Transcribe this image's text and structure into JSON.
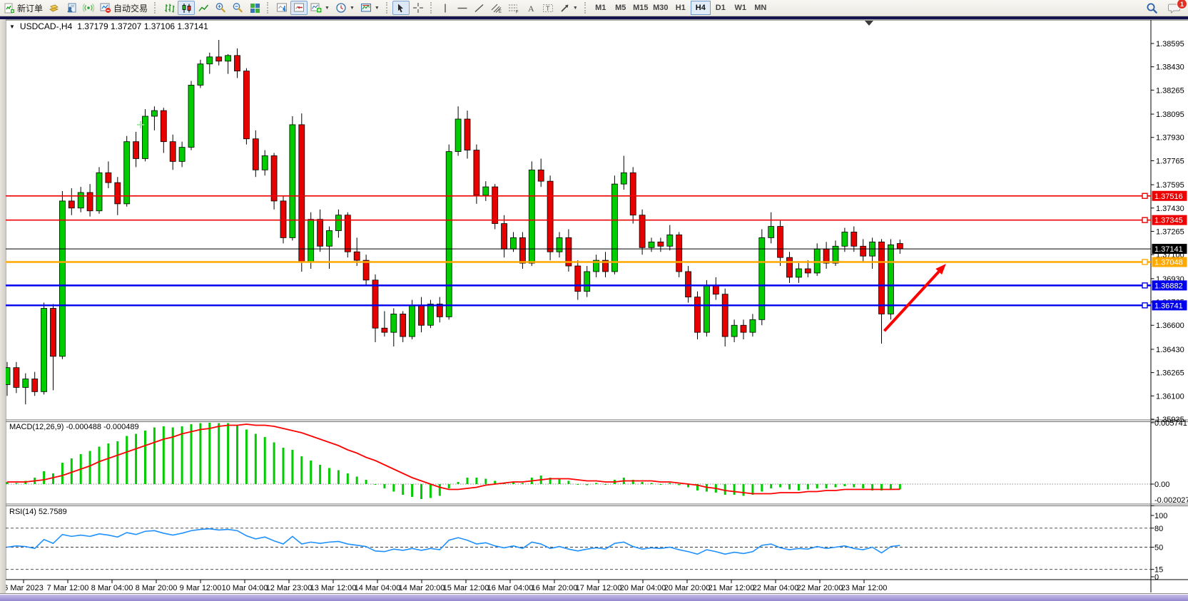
{
  "app": {
    "badge_count": "1"
  },
  "toolbar": {
    "new_order_label": "新订单",
    "autotrading_label": "自动交易",
    "timeframes": [
      {
        "label": "M1",
        "active": false
      },
      {
        "label": "M5",
        "active": false
      },
      {
        "label": "M15",
        "active": false
      },
      {
        "label": "M30",
        "active": false
      },
      {
        "label": "H1",
        "active": false
      },
      {
        "label": "H4",
        "active": true
      },
      {
        "label": "D1",
        "active": false
      },
      {
        "label": "W1",
        "active": false
      },
      {
        "label": "MN",
        "active": false
      }
    ]
  },
  "chart_window": {
    "symbol_period": "USDCAD-,H4",
    "ohlc_text": "1.37179 1.37207 1.37106 1.37141"
  },
  "chart_data": [
    {
      "type": "candlestick",
      "symbol": "USDCAD",
      "timeframe": "H4",
      "title": "USDCAD-,H4",
      "current_bar": {
        "open": 1.37179,
        "high": 1.37207,
        "low": 1.37106,
        "close": 1.37141
      },
      "bull_color": "#00CC00",
      "bear_color": "#E60000",
      "wick_color": "#000000",
      "price_ticks": [
        "1.38595",
        "1.38430",
        "1.38265",
        "1.38095",
        "1.37930",
        "1.37765",
        "1.37595",
        "1.37430",
        "1.37265",
        "1.37100",
        "1.36930",
        "1.36765",
        "1.36600",
        "1.36430",
        "1.36265",
        "1.36100",
        "1.35935"
      ],
      "ylim": [
        1.35935,
        1.38595
      ],
      "grid": false,
      "time_labels": [
        "6 Mar 2023",
        "7 Mar 12:00",
        "8 Mar 04:00",
        "8 Mar 20:00",
        "9 Mar 12:00",
        "10 Mar 04:00",
        "12 Mar 23:00",
        "13 Mar 12:00",
        "14 Mar 04:00",
        "14 Mar 20:00",
        "15 Mar 12:00",
        "16 Mar 04:00",
        "16 Mar 20:00",
        "17 Mar 12:00",
        "20 Mar 04:00",
        "20 Mar 20:00",
        "21 Mar 12:00",
        "22 Mar 04:00",
        "22 Mar 20:00",
        "23 Mar 12:00"
      ],
      "candles": [
        [
          1.3618,
          1.3634,
          1.361,
          1.363
        ],
        [
          1.363,
          1.3634,
          1.3612,
          1.3616
        ],
        [
          1.3616,
          1.3626,
          1.3604,
          1.3622
        ],
        [
          1.3622,
          1.3627,
          1.361,
          1.3613
        ],
        [
          1.3613,
          1.3676,
          1.3611,
          1.3672
        ],
        [
          1.3672,
          1.3675,
          1.3614,
          1.3638
        ],
        [
          1.3638,
          1.3755,
          1.3636,
          1.3748
        ],
        [
          1.3748,
          1.3757,
          1.3738,
          1.3743
        ],
        [
          1.3743,
          1.3758,
          1.374,
          1.3754
        ],
        [
          1.3754,
          1.376,
          1.3737,
          1.3741
        ],
        [
          1.3741,
          1.3772,
          1.3739,
          1.3768
        ],
        [
          1.3768,
          1.3776,
          1.3757,
          1.3761
        ],
        [
          1.3761,
          1.3765,
          1.3738,
          1.3746
        ],
        [
          1.3746,
          1.3794,
          1.3744,
          1.379
        ],
        [
          1.379,
          1.3797,
          1.3772,
          1.3778
        ],
        [
          1.3778,
          1.3813,
          1.3776,
          1.3808
        ],
        [
          1.3808,
          1.3815,
          1.3798,
          1.3812
        ],
        [
          1.3812,
          1.3814,
          1.3782,
          1.379
        ],
        [
          1.379,
          1.3795,
          1.377,
          1.3776
        ],
        [
          1.3776,
          1.379,
          1.3772,
          1.3786
        ],
        [
          1.3786,
          1.3833,
          1.3784,
          1.383
        ],
        [
          1.383,
          1.3848,
          1.3828,
          1.3845
        ],
        [
          1.3845,
          1.3853,
          1.3838,
          1.385
        ],
        [
          1.385,
          1.3862,
          1.3844,
          1.3847
        ],
        [
          1.3847,
          1.3852,
          1.3838,
          1.3851
        ],
        [
          1.3851,
          1.3856,
          1.3835,
          1.384
        ],
        [
          1.384,
          1.3842,
          1.3788,
          1.3792
        ],
        [
          1.3792,
          1.3798,
          1.3765,
          1.377
        ],
        [
          1.377,
          1.3784,
          1.3766,
          1.378
        ],
        [
          1.378,
          1.3782,
          1.3742,
          1.3748
        ],
        [
          1.3748,
          1.3752,
          1.3718,
          1.3722
        ],
        [
          1.3722,
          1.3808,
          1.372,
          1.3802
        ],
        [
          1.3802,
          1.381,
          1.3698,
          1.3705
        ],
        [
          1.3705,
          1.374,
          1.37,
          1.3735
        ],
        [
          1.3735,
          1.3742,
          1.3712,
          1.3716
        ],
        [
          1.3716,
          1.373,
          1.37,
          1.3727
        ],
        [
          1.3727,
          1.3742,
          1.3722,
          1.3738
        ],
        [
          1.3738,
          1.374,
          1.3708,
          1.3712
        ],
        [
          1.3712,
          1.3722,
          1.3702,
          1.3706
        ],
        [
          1.3706,
          1.371,
          1.3688,
          1.3692
        ],
        [
          1.3692,
          1.3696,
          1.3648,
          1.3658
        ],
        [
          1.3658,
          1.367,
          1.3652,
          1.3655
        ],
        [
          1.3655,
          1.3672,
          1.3645,
          1.3668
        ],
        [
          1.3668,
          1.367,
          1.3648,
          1.3652
        ],
        [
          1.3652,
          1.3678,
          1.365,
          1.3674
        ],
        [
          1.3674,
          1.368,
          1.3655,
          1.366
        ],
        [
          1.366,
          1.3678,
          1.3658,
          1.3675
        ],
        [
          1.3675,
          1.368,
          1.3662,
          1.3666
        ],
        [
          1.3666,
          1.3788,
          1.3664,
          1.3783
        ],
        [
          1.3783,
          1.3815,
          1.378,
          1.3806
        ],
        [
          1.3806,
          1.3812,
          1.3778,
          1.3784
        ],
        [
          1.3784,
          1.3788,
          1.3746,
          1.3752
        ],
        [
          1.3752,
          1.3762,
          1.3748,
          1.3758
        ],
        [
          1.3758,
          1.376,
          1.3728,
          1.3732
        ],
        [
          1.3732,
          1.3738,
          1.3708,
          1.3714
        ],
        [
          1.3714,
          1.3726,
          1.3712,
          1.3722
        ],
        [
          1.3722,
          1.3726,
          1.37,
          1.3704
        ],
        [
          1.3704,
          1.3776,
          1.3702,
          1.377
        ],
        [
          1.377,
          1.3778,
          1.3758,
          1.3762
        ],
        [
          1.3762,
          1.3766,
          1.3706,
          1.3712
        ],
        [
          1.3712,
          1.3726,
          1.3708,
          1.3722
        ],
        [
          1.3722,
          1.3728,
          1.3698,
          1.3702
        ],
        [
          1.3702,
          1.3706,
          1.3678,
          1.3684
        ],
        [
          1.3684,
          1.3702,
          1.368,
          1.3698
        ],
        [
          1.3698,
          1.371,
          1.3694,
          1.3706
        ],
        [
          1.3706,
          1.3712,
          1.3694,
          1.3698
        ],
        [
          1.3698,
          1.3766,
          1.3696,
          1.376
        ],
        [
          1.376,
          1.378,
          1.3756,
          1.3768
        ],
        [
          1.3768,
          1.3772,
          1.3732,
          1.3738
        ],
        [
          1.3738,
          1.3742,
          1.371,
          1.3715
        ],
        [
          1.3715,
          1.3722,
          1.3712,
          1.3719
        ],
        [
          1.3719,
          1.3722,
          1.3712,
          1.3716
        ],
        [
          1.3716,
          1.3731,
          1.3713,
          1.3724
        ],
        [
          1.3724,
          1.3726,
          1.3694,
          1.3698
        ],
        [
          1.3698,
          1.3702,
          1.3676,
          1.368
        ],
        [
          1.368,
          1.3684,
          1.365,
          1.3655
        ],
        [
          1.3655,
          1.3692,
          1.3652,
          1.3688
        ],
        [
          1.3688,
          1.3694,
          1.3678,
          1.3682
        ],
        [
          1.3682,
          1.3686,
          1.3645,
          1.3652
        ],
        [
          1.3652,
          1.3664,
          1.3648,
          1.366
        ],
        [
          1.366,
          1.3664,
          1.365,
          1.3655
        ],
        [
          1.3655,
          1.3668,
          1.3652,
          1.3664
        ],
        [
          1.3664,
          1.3728,
          1.366,
          1.3722
        ],
        [
          1.3722,
          1.374,
          1.3718,
          1.373
        ],
        [
          1.373,
          1.3734,
          1.3702,
          1.3708
        ],
        [
          1.3708,
          1.3712,
          1.369,
          1.3694
        ],
        [
          1.3694,
          1.3704,
          1.369,
          1.37
        ],
        [
          1.37,
          1.3706,
          1.3694,
          1.3697
        ],
        [
          1.3697,
          1.3718,
          1.3695,
          1.3714
        ],
        [
          1.3714,
          1.3719,
          1.37,
          1.3704
        ],
        [
          1.3704,
          1.372,
          1.3702,
          1.3716
        ],
        [
          1.3716,
          1.3729,
          1.3712,
          1.3726
        ],
        [
          1.3726,
          1.373,
          1.3712,
          1.3716
        ],
        [
          1.3716,
          1.3721,
          1.3705,
          1.3709
        ],
        [
          1.3709,
          1.3722,
          1.37,
          1.3719
        ],
        [
          1.3719,
          1.3721,
          1.3647,
          1.3668
        ],
        [
          1.3668,
          1.3721,
          1.3664,
          1.3717
        ],
        [
          1.37179,
          1.37207,
          1.37106,
          1.37141
        ]
      ],
      "hlines": [
        {
          "price": 1.37516,
          "label": "1.37516",
          "color": "#EE0000",
          "width": 1.6
        },
        {
          "price": 1.37345,
          "label": "1.37345",
          "color": "#EE0000",
          "width": 1.6
        },
        {
          "price": 1.37048,
          "label": "1.37048",
          "color": "#FFA800",
          "width": 2.4
        },
        {
          "price": 1.36882,
          "label": "1.36882",
          "color": "#0000EE",
          "width": 2.4
        },
        {
          "price": 1.36741,
          "label": "1.36741",
          "color": "#0000EE",
          "width": 2.4
        }
      ],
      "current_price_line": {
        "price": 1.37141,
        "label": "1.37141",
        "color": "#000000"
      },
      "annotations": [
        {
          "type": "trend-arrow",
          "color": "#FF0000",
          "width": 4,
          "from_bar": 95.3,
          "from_price": 1.3656,
          "to_bar": 102.0,
          "to_price": 1.37035
        },
        {
          "type": "cross-marker",
          "color": "#9ADF9A",
          "bar": 14.5,
          "price": 1.3802
        },
        {
          "type": "shift-marker",
          "x": 1218
        }
      ]
    },
    {
      "type": "bar",
      "name": "MACD(12,26,9)",
      "label": "MACD(12,26,9) -0.000488 -0.000489",
      "histogram_color": "#00CC00",
      "signal_color": "#FF0000",
      "axis_ticks": [
        "0.005741",
        "0.00",
        "-0.002027"
      ],
      "ylim": [
        -0.002027,
        0.005741
      ],
      "current": {
        "macd": -0.000488,
        "signal": -0.000489
      },
      "values": [
        0.0002,
        0.0001,
        0.0003,
        0.0006,
        0.0012,
        0.001,
        0.002,
        0.0024,
        0.0028,
        0.0031,
        0.0035,
        0.0038,
        0.004,
        0.0045,
        0.0047,
        0.005,
        0.0053,
        0.0054,
        0.0053,
        0.0054,
        0.0056,
        0.0057,
        0.00574,
        0.0057,
        0.0057,
        0.0055,
        0.0051,
        0.0047,
        0.0044,
        0.0039,
        0.0034,
        0.0032,
        0.0026,
        0.0022,
        0.0018,
        0.0015,
        0.0013,
        0.001,
        0.0007,
        0.0004,
        0.0,
        -0.0004,
        -0.0007,
        -0.001,
        -0.0012,
        -0.0014,
        -0.0013,
        -0.0011,
        -0.0004,
        0.0002,
        0.0006,
        0.0006,
        0.0005,
        0.0003,
        0.0001,
        0.0002,
        0.0001,
        0.0006,
        0.0008,
        0.0006,
        0.0005,
        0.0003,
        0.0,
        -0.0001,
        0.0001,
        0.0,
        0.0004,
        0.0006,
        0.0004,
        0.0002,
        0.0001,
        0.0,
        0.0001,
        -0.0001,
        -0.0003,
        -0.0006,
        -0.0007,
        -0.0008,
        -0.001,
        -0.001,
        -0.0011,
        -0.001,
        -0.0007,
        -0.0004,
        -0.0003,
        -0.0005,
        -0.0006,
        -0.0005,
        -0.0004,
        -0.0004,
        -0.0003,
        -0.0002,
        -0.0003,
        -0.0004,
        -0.0006,
        -0.0006,
        -0.0005,
        -0.000488
      ],
      "signal": [
        0.0002,
        0.0002,
        0.0002,
        0.0003,
        0.0004,
        0.0006,
        0.0008,
        0.0011,
        0.0014,
        0.0017,
        0.0021,
        0.0024,
        0.0027,
        0.003,
        0.0033,
        0.0036,
        0.0039,
        0.0042,
        0.0044,
        0.0047,
        0.0049,
        0.0051,
        0.0052,
        0.0054,
        0.0055,
        0.0055,
        0.0056,
        0.0055,
        0.0055,
        0.0054,
        0.0052,
        0.005,
        0.0048,
        0.0045,
        0.0042,
        0.0039,
        0.0036,
        0.0032,
        0.0029,
        0.0025,
        0.0022,
        0.0018,
        0.0014,
        0.001,
        0.0006,
        0.0003,
        0.0,
        -0.0003,
        -0.0005,
        -0.0005,
        -0.0004,
        -0.0003,
        -0.0001,
        0.0,
        0.0001,
        0.0002,
        0.0002,
        0.0003,
        0.0004,
        0.0005,
        0.0005,
        0.0005,
        0.0004,
        0.0003,
        0.0003,
        0.0002,
        0.0002,
        0.0003,
        0.0003,
        0.0003,
        0.0003,
        0.0002,
        0.0002,
        0.0001,
        0.0,
        -0.0001,
        -0.0003,
        -0.0004,
        -0.0006,
        -0.0007,
        -0.0008,
        -0.0009,
        -0.0009,
        -0.0009,
        -0.0008,
        -0.0008,
        -0.0008,
        -0.0007,
        -0.0007,
        -0.0006,
        -0.0006,
        -0.0005,
        -0.0005,
        -0.0005,
        -0.0005,
        -0.0005,
        -0.0005,
        -0.000489
      ]
    },
    {
      "type": "line",
      "name": "RSI(14)",
      "label": "RSI(14) 52.7589",
      "color": "#1E90FF",
      "levels": [
        80,
        50,
        15
      ],
      "axis_ticks": [
        "100",
        "80",
        "50",
        "15",
        "0"
      ],
      "ylim": [
        0,
        100
      ],
      "current": 52.7589,
      "values": [
        50,
        52,
        51,
        48,
        62,
        56,
        70,
        67,
        69,
        67,
        71,
        69,
        66,
        73,
        70,
        75,
        76,
        72,
        69,
        72,
        76,
        78,
        79,
        77,
        78,
        76,
        68,
        63,
        66,
        60,
        55,
        67,
        55,
        58,
        56,
        58,
        59,
        55,
        53,
        51,
        44,
        43,
        47,
        45,
        48,
        45,
        48,
        46,
        61,
        65,
        61,
        55,
        57,
        52,
        49,
        52,
        48,
        58,
        55,
        48,
        51,
        47,
        44,
        47,
        49,
        47,
        56,
        58,
        51,
        47,
        49,
        48,
        50,
        46,
        43,
        39,
        46,
        43,
        39,
        42,
        40,
        43,
        53,
        55,
        49,
        46,
        48,
        47,
        51,
        48,
        50,
        52,
        48,
        46,
        50,
        41,
        51,
        52.7589
      ]
    }
  ]
}
